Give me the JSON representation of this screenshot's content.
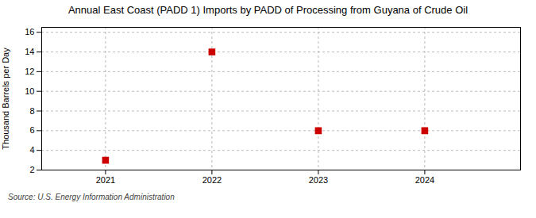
{
  "chart_data": {
    "type": "scatter",
    "title": "Annual East Coast (PADD 1) Imports by PADD of Processing from Guyana of Crude Oil",
    "ylabel": "Thousand Barrels per Day",
    "source": "Source: U.S. Energy Information Administration",
    "x": [
      2021,
      2022,
      2023,
      2024
    ],
    "values": [
      3,
      14,
      6,
      6
    ],
    "color": "#cc0000",
    "marker": "square",
    "xlim": [
      2020.4,
      2024.9
    ],
    "xticks": [
      2021,
      2022,
      2023,
      2024
    ],
    "ylim": [
      2,
      16.5
    ],
    "yticks": [
      2,
      4,
      6,
      8,
      10,
      12,
      14,
      16
    ],
    "grid": true
  }
}
